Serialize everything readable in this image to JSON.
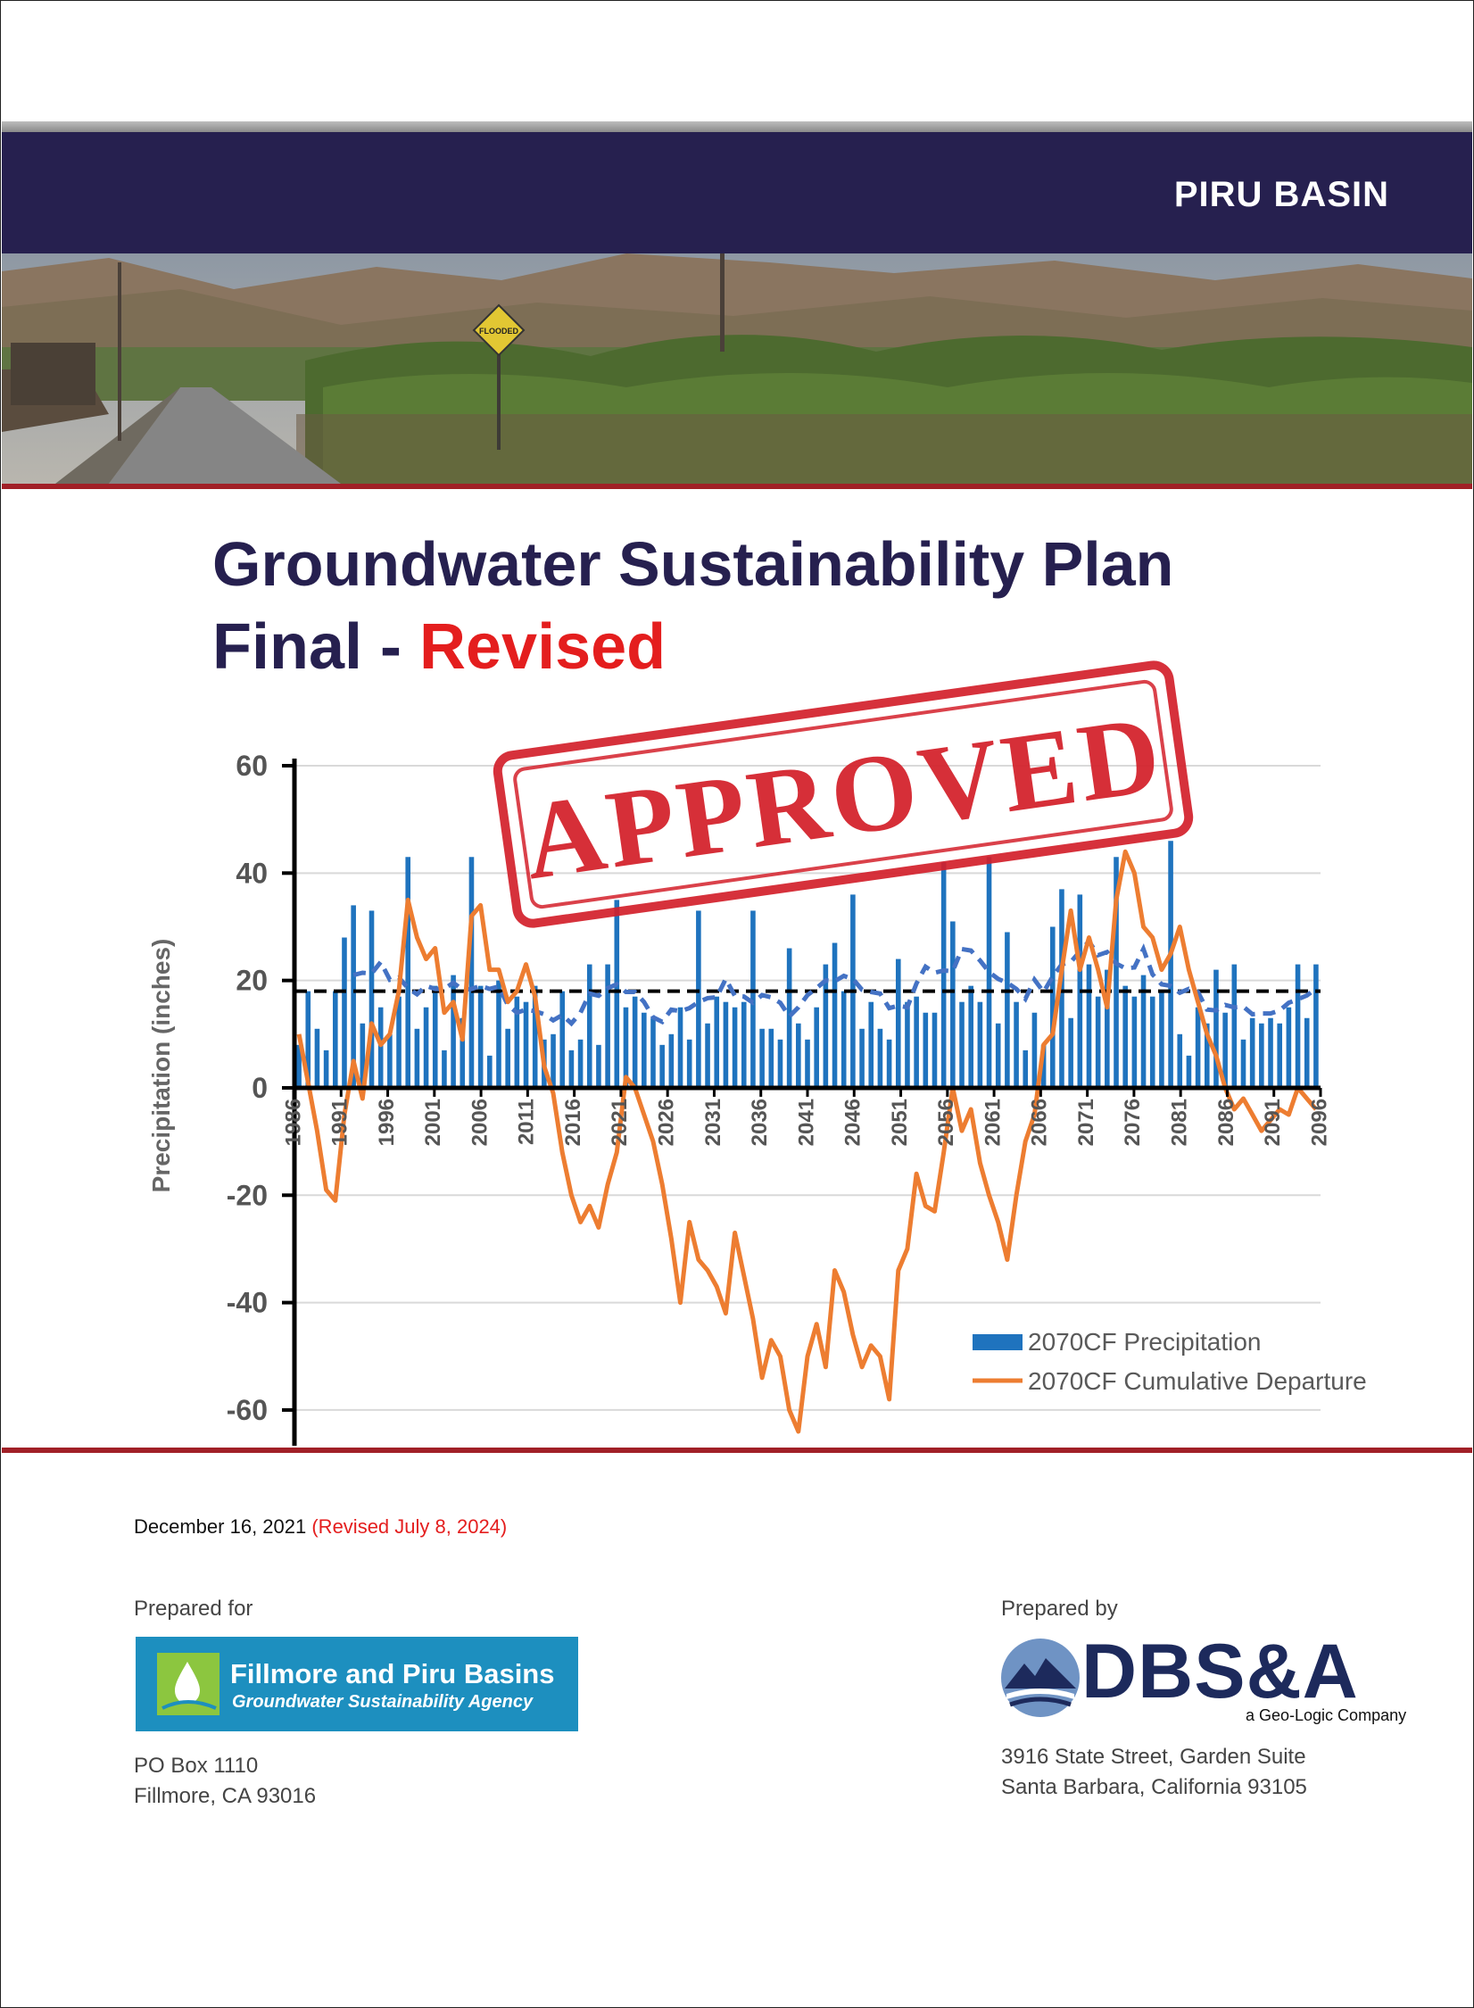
{
  "header": {
    "basin": "PIRU BASIN",
    "photo_sign": "FLOODED"
  },
  "title": {
    "line1": "Groundwater Sustainability Plan",
    "line2_prefix": "Final - ",
    "line2_highlight": "Revised"
  },
  "stamp": {
    "text": "APPROVED"
  },
  "colors": {
    "navy": "#26204f",
    "red_rule": "#a12027",
    "revised_red": "#e41e1e",
    "stamp_red": "#d3202a",
    "bar_blue": "#1f73be",
    "line_orange": "#ed7d31",
    "avg_dash_blue": "#4472c4"
  },
  "chart_data": {
    "type": "bar",
    "ylabel": "Precipitation (inches)",
    "ylim": [
      -65,
      60
    ],
    "yticks": [
      "60",
      "40",
      "20",
      "0",
      "-20",
      "-40",
      "-60"
    ],
    "ytick_values": [
      60,
      40,
      20,
      0,
      -20,
      -40,
      -60
    ],
    "xtick_labels": [
      "1986",
      "1991",
      "1996",
      "2001",
      "2006",
      "2011",
      "2016",
      "2021",
      "2026",
      "2031",
      "2036",
      "2041",
      "2046",
      "2051",
      "2056",
      "2061",
      "2066",
      "2071",
      "2076",
      "2081",
      "2086",
      "2091",
      "2096"
    ],
    "x_start": 1986,
    "x_end": 2096,
    "mean_line": 18,
    "legend": [
      "2070CF Precipitation",
      "2070CF Cumulative Departure"
    ],
    "legend_position": "bottom-right",
    "grid": true,
    "precipitation": [
      8,
      18,
      11,
      7,
      18,
      28,
      34,
      12,
      33,
      15,
      10,
      17,
      43,
      11,
      15,
      19,
      7,
      21,
      13,
      43,
      19,
      6,
      20,
      11,
      17,
      16,
      19,
      9,
      10,
      18,
      7,
      9,
      23,
      8,
      23,
      35,
      15,
      17,
      14,
      13,
      8,
      10,
      15,
      9,
      33,
      12,
      17,
      16,
      15,
      16,
      33,
      11,
      11,
      9,
      26,
      12,
      9,
      15,
      23,
      27,
      18,
      36,
      11,
      16,
      11,
      9,
      24,
      16,
      17,
      14,
      14,
      42,
      31,
      16,
      19,
      16,
      43,
      12,
      29,
      16,
      7,
      14,
      8,
      30,
      37,
      13,
      36,
      23,
      17,
      22,
      43,
      19,
      17,
      21,
      17,
      18,
      46,
      10,
      6,
      15,
      12,
      22,
      14,
      23,
      9,
      13,
      12,
      13,
      12,
      15,
      23,
      13,
      23
    ],
    "cumulative_departure": [
      10,
      1,
      -8,
      -19,
      -21,
      -5,
      5,
      -2,
      12,
      8,
      10,
      18,
      35,
      28,
      24,
      26,
      14,
      16,
      9,
      32,
      34,
      22,
      22,
      16,
      18,
      23,
      17,
      4,
      -1,
      -12,
      -20,
      -25,
      -22,
      -26,
      -18,
      -12,
      2,
      0,
      -5,
      -10,
      -18,
      -28,
      -40,
      -25,
      -32,
      -34,
      -37,
      -42,
      -27,
      -35,
      -43,
      -54,
      -47,
      -50,
      -60,
      -64,
      -50,
      -44,
      -52,
      -34,
      -38,
      -46,
      -52,
      -48,
      -50,
      -58,
      -34,
      -30,
      -16,
      -22,
      -23,
      -12,
      0,
      -8,
      -4,
      -14,
      -20,
      -25,
      -32,
      -20,
      -10,
      -5,
      8,
      10,
      22,
      33,
      22,
      28,
      22,
      15,
      35,
      44,
      40,
      30,
      28,
      22,
      25,
      30,
      22,
      16,
      10,
      6,
      0,
      -4,
      -2,
      -5,
      -8,
      -6,
      -4,
      -5,
      0,
      -2,
      -4
    ]
  },
  "footer": {
    "date": "December 16, 2021",
    "revised": "(Revised July 8, 2024)",
    "prepared_for_label": "Prepared for",
    "agency_name": "Fillmore and Piru Basins",
    "agency_sub": "Groundwater Sustainability Agency",
    "agency_address1": "PO Box 1110",
    "agency_address2": "Fillmore, CA 93016",
    "prepared_by_label": "Prepared by",
    "firm_name": "DBS&A",
    "firm_tagline": "a Geo-Logic Company",
    "firm_address1": "3916 State Street, Garden Suite",
    "firm_address2": "Santa Barbara, California 93105"
  }
}
